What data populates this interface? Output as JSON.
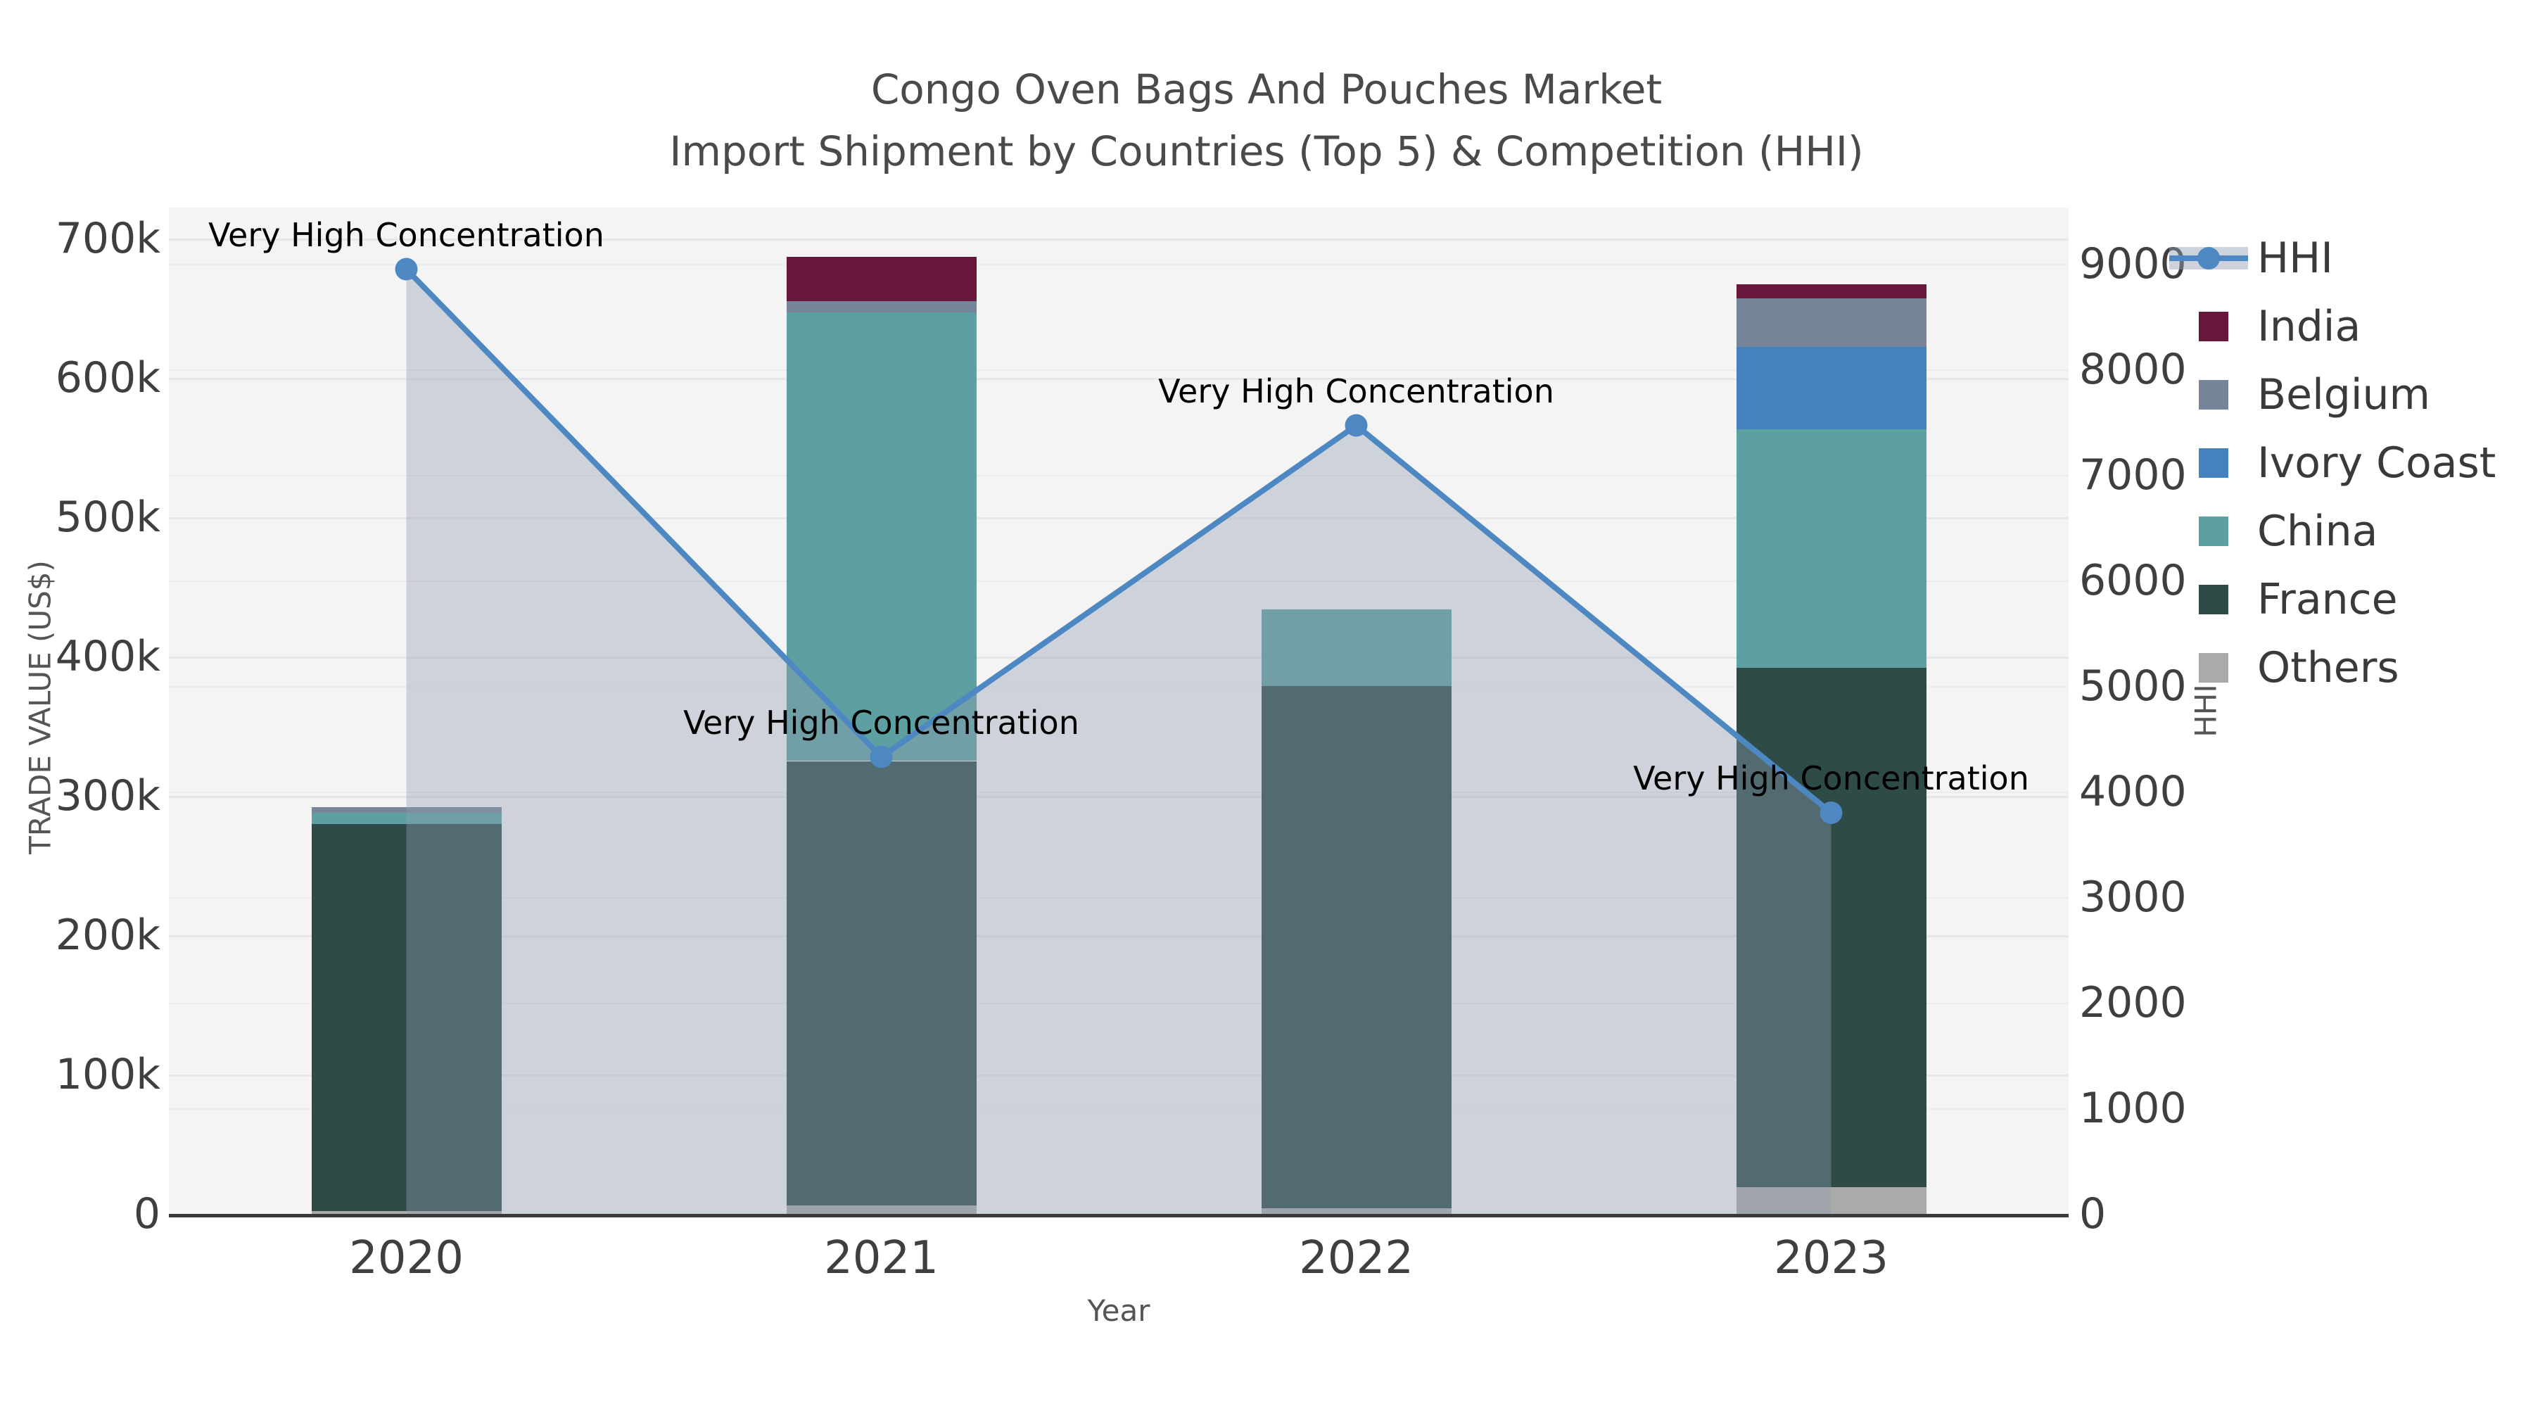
{
  "title": {
    "line1": "Congo Oven Bags And Pouches Market",
    "line2": "Import Shipment by Countries (Top 5) & Competition (HHI)"
  },
  "axes": {
    "x": {
      "label": "Year",
      "categories": [
        "2020",
        "2021",
        "2022",
        "2023"
      ]
    },
    "y1": {
      "label": "TRADE VALUE (US$)",
      "ticks": [
        {
          "label": "0",
          "value": 0
        },
        {
          "label": "100k",
          "value": 100
        },
        {
          "label": "200k",
          "value": 200
        },
        {
          "label": "300k",
          "value": 300
        },
        {
          "label": "400k",
          "value": 400
        },
        {
          "label": "500k",
          "value": 500
        },
        {
          "label": "600k",
          "value": 600
        },
        {
          "label": "700k",
          "value": 700
        }
      ],
      "unit": "US$ thousands"
    },
    "y2": {
      "label": "HHI",
      "ticks": [
        {
          "label": "0",
          "value": 0
        },
        {
          "label": "1000",
          "value": 1000
        },
        {
          "label": "2000",
          "value": 2000
        },
        {
          "label": "3000",
          "value": 3000
        },
        {
          "label": "4000",
          "value": 4000
        },
        {
          "label": "5000",
          "value": 5000
        },
        {
          "label": "6000",
          "value": 6000
        },
        {
          "label": "7000",
          "value": 7000
        },
        {
          "label": "8000",
          "value": 8000
        },
        {
          "label": "9000",
          "value": 9000
        }
      ]
    }
  },
  "colors": {
    "hhi_line": "#4E88C2",
    "hhi_fill": "#919EB4",
    "hhi_fill_opacity": 0.38,
    "india": "#67173A",
    "belgium": "#76859A",
    "ivory_coast": "#4482BD",
    "china": "#5CA0A1",
    "france": "#2E4B47",
    "others": "#AAAAAA",
    "plot_bg": "#f4f4f4",
    "axis_line": "#3a3a3a"
  },
  "legend": {
    "items": [
      {
        "label": "HHI",
        "color_key": "hhi_line",
        "kind": "line"
      },
      {
        "label": "India",
        "color_key": "india",
        "kind": "swatch"
      },
      {
        "label": "Belgium",
        "color_key": "belgium",
        "kind": "swatch"
      },
      {
        "label": "Ivory Coast",
        "color_key": "ivory_coast",
        "kind": "swatch"
      },
      {
        "label": "China",
        "color_key": "china",
        "kind": "swatch"
      },
      {
        "label": "France",
        "color_key": "france",
        "kind": "swatch"
      },
      {
        "label": "Others",
        "color_key": "others",
        "kind": "swatch"
      }
    ]
  },
  "chart_data": {
    "type": "bar+line combo (stacked bars on y1, HHI line with shaded area on y2)",
    "categories": [
      "2020",
      "2021",
      "2022",
      "2023"
    ],
    "bar_unit": "US$ thousands",
    "bar_stack_order_bottom_to_top": [
      "Others",
      "France",
      "China",
      "Ivory Coast",
      "Belgium",
      "India"
    ],
    "series": [
      {
        "name": "Others",
        "color_key": "others",
        "values": [
          2,
          6,
          4,
          19
        ]
      },
      {
        "name": "France",
        "color_key": "france",
        "values": [
          278,
          319,
          375,
          373
        ]
      },
      {
        "name": "China",
        "color_key": "china",
        "values": [
          8,
          322,
          55,
          171
        ]
      },
      {
        "name": "Ivory Coast",
        "color_key": "ivory_coast",
        "values": [
          0,
          0,
          0,
          59
        ]
      },
      {
        "name": "Belgium",
        "color_key": "belgium",
        "values": [
          4,
          8,
          0,
          35
        ]
      },
      {
        "name": "India",
        "color_key": "india",
        "values": [
          0,
          32,
          0,
          10
        ]
      }
    ],
    "bar_totals": [
      292,
      687,
      434,
      667
    ],
    "line": {
      "name": "HHI",
      "axis": "y2",
      "values": [
        8950,
        4330,
        7470,
        3800
      ],
      "point_annotation": "Very High Concentration"
    },
    "ylim_y1": [
      0,
      722
    ],
    "ylim_y2": [
      0,
      9530
    ],
    "grid": "horizontal light gridlines for both axes",
    "legend_position": "outside right, top"
  }
}
